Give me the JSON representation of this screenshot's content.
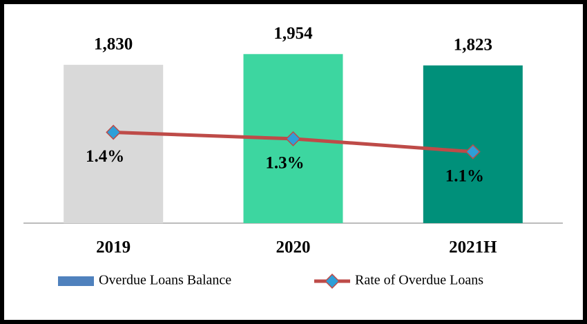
{
  "chart_data": {
    "type": "bar-line",
    "categories": [
      "2019",
      "2020",
      "2021H"
    ],
    "series": [
      {
        "name": "Overdue Loans Balance",
        "type": "bar",
        "color": "#4f81bd",
        "bar_colors": [
          "#d9d9d9",
          "#3dd6a0",
          "#00907a"
        ],
        "values": [
          1830,
          1954,
          1823
        ],
        "value_labels": [
          "1,830",
          "1,954",
          "1,823"
        ]
      },
      {
        "name": "Rate of Overdue Loans",
        "type": "line",
        "axis": "y2",
        "color": "#be4b48",
        "marker_color": "#2e9fd8",
        "values": [
          1.4,
          1.3,
          1.1
        ],
        "value_labels": [
          "1.4%",
          "1.3%",
          "1.1%"
        ]
      }
    ],
    "ylim": [
      0,
      2100
    ],
    "y2lim": [
      0,
      2.8
    ]
  }
}
